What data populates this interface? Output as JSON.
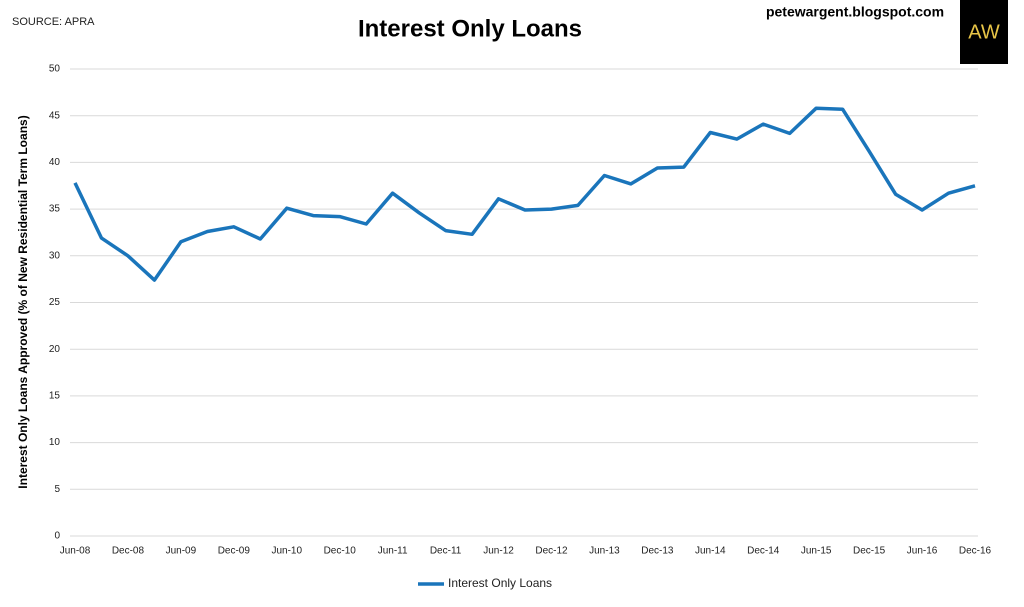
{
  "chart_data": {
    "type": "line",
    "title": "Interest Only Loans",
    "source": "SOURCE: APRA",
    "site": "petewargent.blogspot.com",
    "logo": "AW",
    "y_label": "Interest Only Loans Approved (% of New Residential Term Loans)",
    "categories": [
      "Jun-08",
      null,
      "Dec-08",
      null,
      "Jun-09",
      null,
      "Dec-09",
      null,
      "Jun-10",
      null,
      "Dec-10",
      null,
      "Jun-11",
      null,
      "Dec-11",
      null,
      "Jun-12",
      null,
      "Dec-12",
      null,
      "Jun-13",
      null,
      "Dec-13",
      null,
      "Jun-14",
      null,
      "Dec-14",
      null,
      "Jun-15",
      null,
      "Dec-15",
      null,
      "Jun-16",
      null,
      "Dec-16"
    ],
    "series": [
      {
        "name": "Interest Only Loans",
        "color": "#1a75bb",
        "values": [
          37.8,
          31.9,
          30.0,
          27.4,
          31.5,
          32.6,
          33.1,
          31.8,
          35.1,
          34.3,
          34.2,
          33.4,
          36.7,
          34.6,
          32.7,
          32.3,
          36.1,
          34.9,
          35.0,
          35.4,
          38.6,
          37.7,
          39.4,
          39.5,
          43.2,
          42.5,
          44.1,
          43.1,
          45.8,
          45.7,
          41.2,
          36.6,
          34.9,
          36.7,
          37.5
        ]
      }
    ],
    "ylim": [
      0,
      50
    ],
    "yticks": [
      0,
      5,
      10,
      15,
      20,
      25,
      30,
      35,
      40,
      45,
      50
    ],
    "grid": true,
    "legend": "bottom"
  }
}
